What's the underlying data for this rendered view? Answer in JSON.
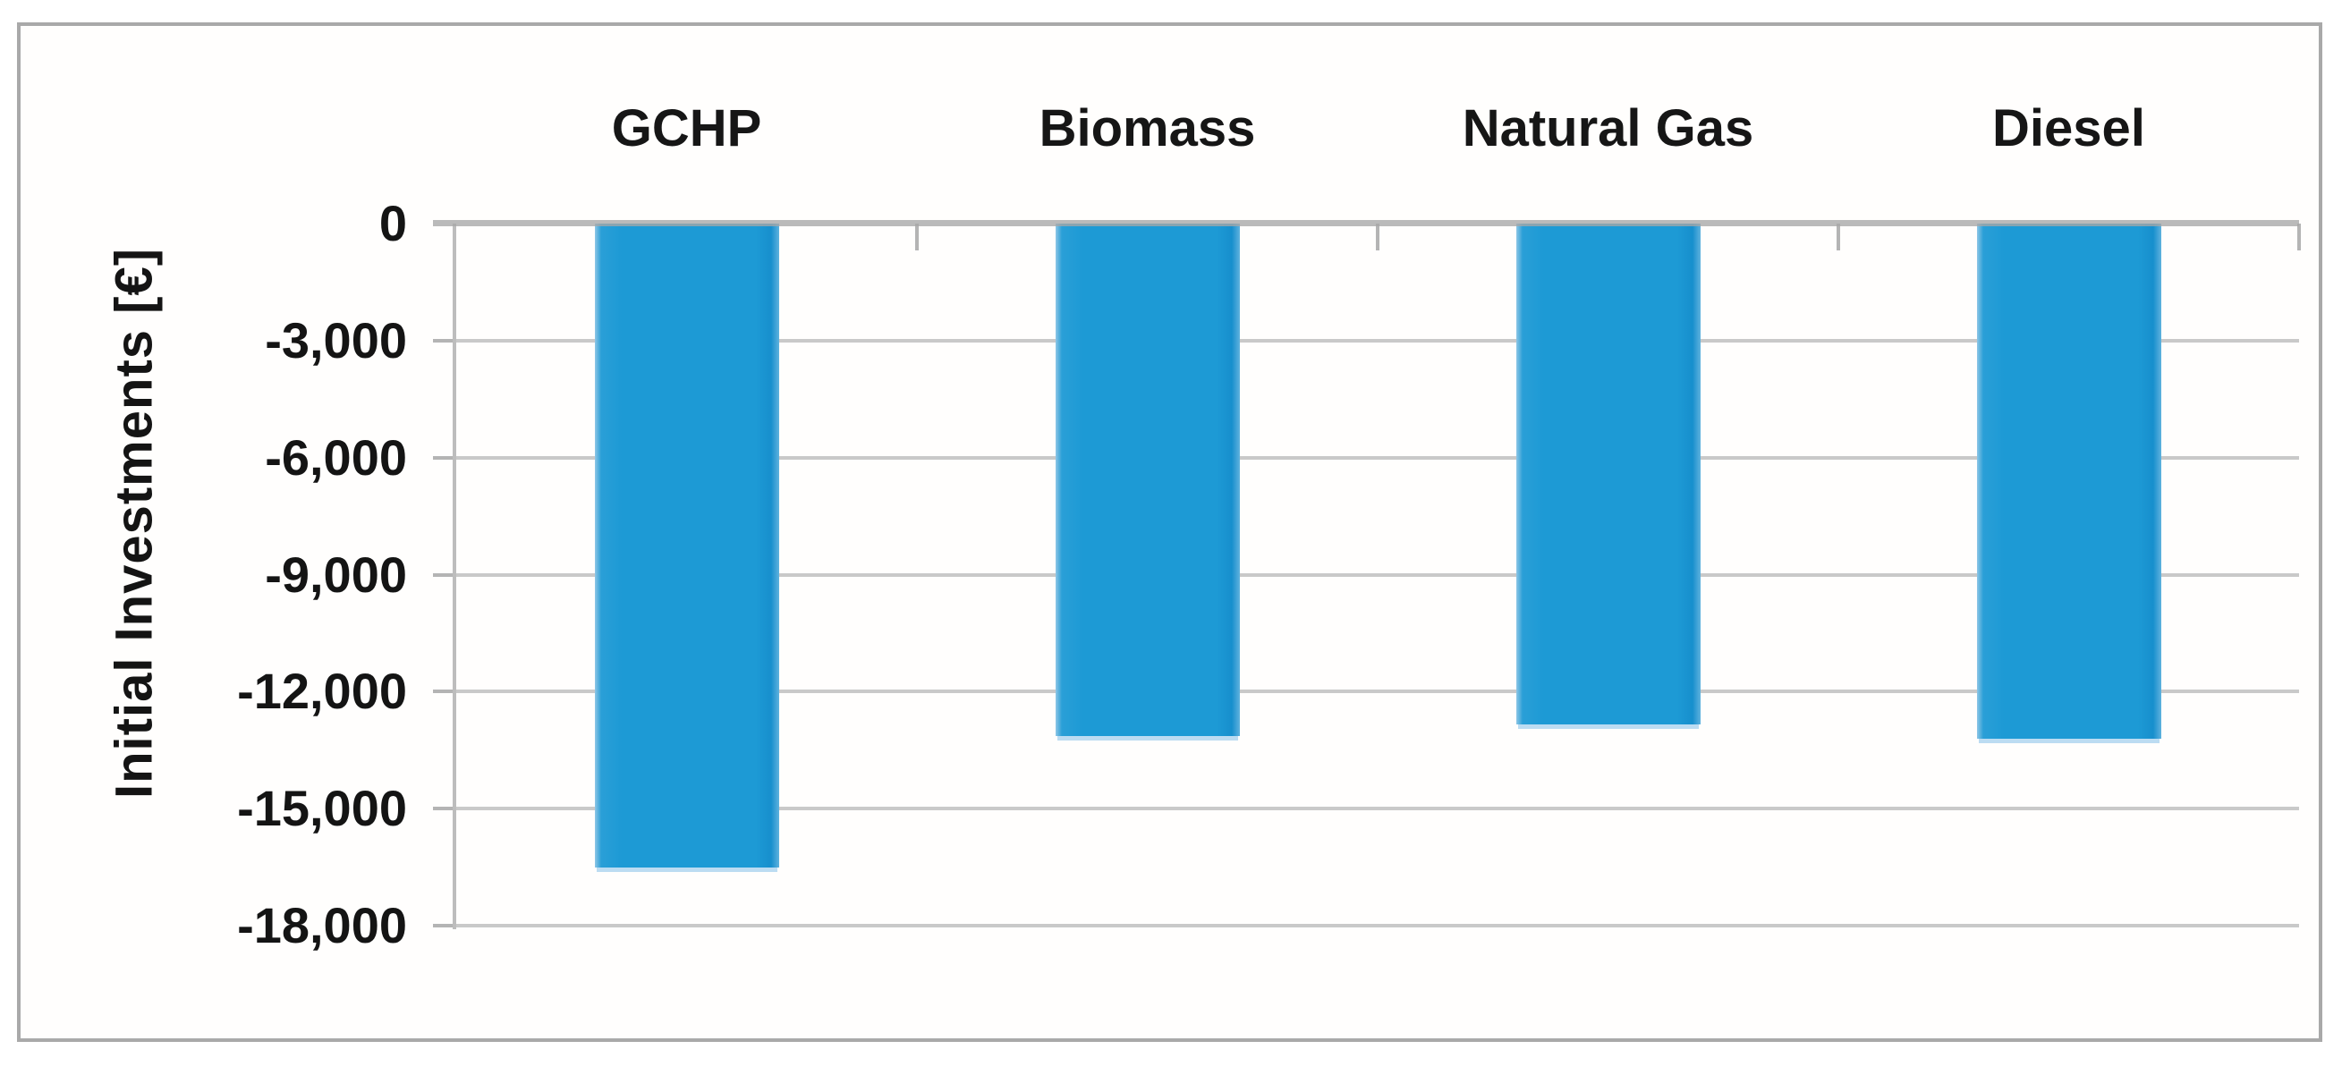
{
  "chart_data": {
    "type": "bar",
    "title": "",
    "categories": [
      "GCHP",
      "Biomass",
      "Natural Gas",
      "Diesel"
    ],
    "values": [
      -16500,
      -13150,
      -12850,
      -13200
    ],
    "xlabel": "",
    "ylabel": "Initial Investments [€]",
    "ylim": [
      0,
      -18000
    ],
    "ytick_step": 3000,
    "ytick_labels": [
      "0",
      "-3,000",
      "-6,000",
      "-9,000",
      "-12,000",
      "-15,000",
      "-18,000"
    ],
    "grid": "horizontal",
    "legend": "none",
    "bar_color": "#1d9ad5",
    "bar_halo_color": "#bcdcf2",
    "gridline_color": "#c9c9c9",
    "axis_line_color": "#b4b4b4",
    "figure_border_color": "#a9a9a9",
    "text_color": "#141414"
  }
}
